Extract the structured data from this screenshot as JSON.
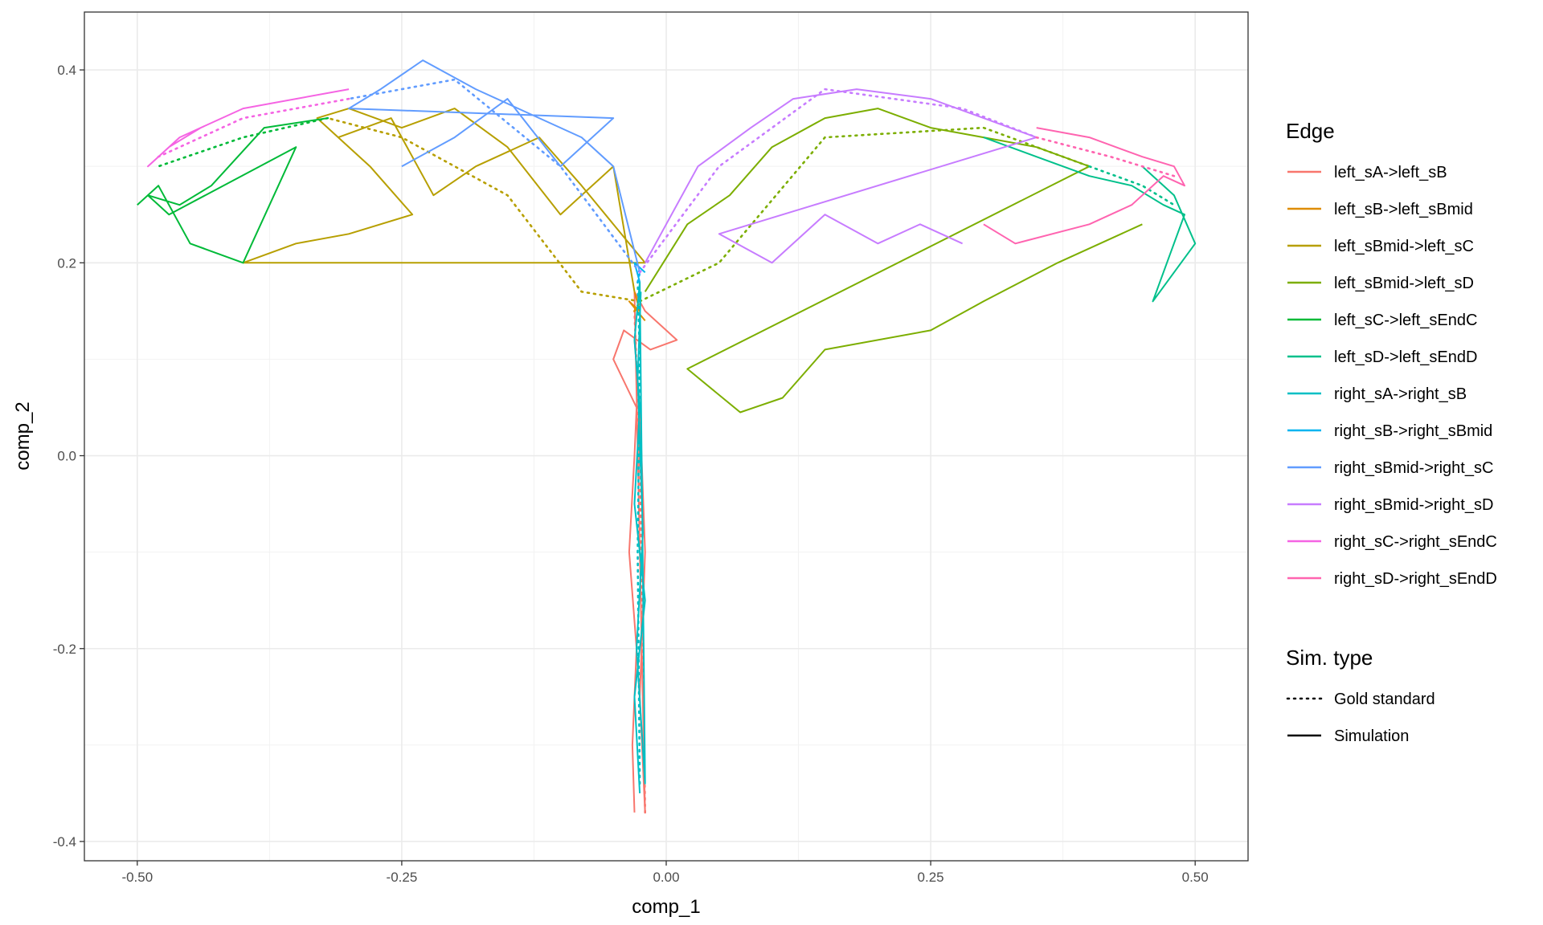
{
  "chart_data": {
    "type": "line",
    "xlabel": "comp_1",
    "ylabel": "comp_2",
    "xlim": [
      -0.55,
      0.55
    ],
    "ylim": [
      -0.42,
      0.46
    ],
    "x_ticks": [
      -0.5,
      -0.25,
      0.0,
      0.25,
      0.5
    ],
    "x_tick_labels": [
      "-0.50",
      "-0.25",
      "0.00",
      "0.25",
      "0.50"
    ],
    "y_ticks": [
      -0.4,
      -0.2,
      0.0,
      0.2,
      0.4
    ],
    "y_tick_labels": [
      "-0.4",
      "-0.2",
      "0.0",
      "0.2",
      "0.4"
    ],
    "grid": true,
    "legend_position": "right",
    "legend_edge_title": "Edge",
    "legend_simtype_title": "Sim. type",
    "simtypes": [
      {
        "name": "Gold standard",
        "dash": "dotted"
      },
      {
        "name": "Simulation",
        "dash": "solid"
      }
    ],
    "series": [
      {
        "name": "left_sA->left_sB",
        "color": "#F8766D",
        "gold": [
          [
            -0.02,
            -0.37
          ],
          [
            -0.022,
            -0.2
          ],
          [
            -0.025,
            0.0
          ],
          [
            -0.03,
            0.15
          ]
        ],
        "sim": [
          [
            -0.03,
            -0.37
          ],
          [
            -0.032,
            -0.3
          ],
          [
            -0.028,
            -0.2
          ],
          [
            -0.035,
            -0.1
          ],
          [
            -0.03,
            0.0
          ],
          [
            -0.028,
            0.05
          ],
          [
            -0.05,
            0.1
          ],
          [
            -0.04,
            0.13
          ],
          [
            -0.015,
            0.11
          ],
          [
            0.01,
            0.12
          ],
          [
            -0.02,
            0.15
          ],
          [
            -0.03,
            0.17
          ],
          [
            -0.02,
            -0.37
          ],
          [
            -0.025,
            -0.25
          ],
          [
            -0.02,
            -0.1
          ],
          [
            -0.025,
            0.05
          ],
          [
            -0.03,
            0.12
          ]
        ]
      },
      {
        "name": "left_sB->left_sBmid",
        "color": "#DE8C00",
        "gold": [
          [
            -0.03,
            0.15
          ],
          [
            -0.025,
            0.16
          ]
        ],
        "sim": [
          [
            -0.03,
            0.17
          ],
          [
            -0.025,
            0.15
          ],
          [
            -0.035,
            0.16
          ],
          [
            -0.02,
            0.14
          ]
        ]
      },
      {
        "name": "left_sBmid->left_sC",
        "color": "#B79F00",
        "gold": [
          [
            -0.025,
            0.16
          ],
          [
            -0.08,
            0.17
          ],
          [
            -0.15,
            0.27
          ],
          [
            -0.25,
            0.33
          ],
          [
            -0.32,
            0.35
          ]
        ],
        "sim": [
          [
            -0.03,
            0.17
          ],
          [
            -0.05,
            0.3
          ],
          [
            -0.1,
            0.25
          ],
          [
            -0.15,
            0.32
          ],
          [
            -0.2,
            0.36
          ],
          [
            -0.25,
            0.34
          ],
          [
            -0.3,
            0.36
          ],
          [
            -0.33,
            0.35
          ],
          [
            -0.28,
            0.3
          ],
          [
            -0.24,
            0.25
          ],
          [
            -0.3,
            0.23
          ],
          [
            -0.35,
            0.22
          ],
          [
            -0.4,
            0.2
          ],
          [
            -0.02,
            0.2
          ],
          [
            -0.08,
            0.28
          ],
          [
            -0.12,
            0.33
          ],
          [
            -0.18,
            0.3
          ],
          [
            -0.22,
            0.27
          ],
          [
            -0.26,
            0.35
          ],
          [
            -0.31,
            0.33
          ]
        ]
      },
      {
        "name": "left_sBmid->left_sD",
        "color": "#7CAE00",
        "gold": [
          [
            -0.025,
            0.16
          ],
          [
            0.05,
            0.2
          ],
          [
            0.15,
            0.33
          ],
          [
            0.3,
            0.34
          ],
          [
            0.4,
            0.3
          ]
        ],
        "sim": [
          [
            -0.02,
            0.17
          ],
          [
            0.02,
            0.24
          ],
          [
            0.06,
            0.27
          ],
          [
            0.1,
            0.32
          ],
          [
            0.15,
            0.35
          ],
          [
            0.2,
            0.36
          ],
          [
            0.25,
            0.34
          ],
          [
            0.3,
            0.33
          ],
          [
            0.35,
            0.32
          ],
          [
            0.4,
            0.3
          ],
          [
            0.02,
            0.09
          ],
          [
            0.07,
            0.045
          ],
          [
            0.11,
            0.06
          ],
          [
            0.15,
            0.11
          ],
          [
            0.25,
            0.13
          ],
          [
            0.3,
            0.16
          ],
          [
            0.37,
            0.2
          ],
          [
            0.45,
            0.24
          ]
        ]
      },
      {
        "name": "left_sC->left_sEndC",
        "color": "#00BA38",
        "gold": [
          [
            -0.32,
            0.35
          ],
          [
            -0.4,
            0.33
          ],
          [
            -0.48,
            0.3
          ]
        ],
        "sim": [
          [
            -0.32,
            0.35
          ],
          [
            -0.38,
            0.34
          ],
          [
            -0.43,
            0.28
          ],
          [
            -0.46,
            0.26
          ],
          [
            -0.49,
            0.27
          ],
          [
            -0.47,
            0.25
          ],
          [
            -0.35,
            0.32
          ],
          [
            -0.4,
            0.2
          ],
          [
            -0.45,
            0.22
          ],
          [
            -0.48,
            0.28
          ],
          [
            -0.5,
            0.26
          ]
        ]
      },
      {
        "name": "left_sD->left_sEndD",
        "color": "#00C08B",
        "gold": [
          [
            0.4,
            0.3
          ],
          [
            0.45,
            0.28
          ],
          [
            0.48,
            0.26
          ]
        ],
        "sim": [
          [
            0.3,
            0.33
          ],
          [
            0.35,
            0.31
          ],
          [
            0.4,
            0.29
          ],
          [
            0.44,
            0.28
          ],
          [
            0.47,
            0.26
          ],
          [
            0.49,
            0.25
          ],
          [
            0.46,
            0.16
          ],
          [
            0.5,
            0.22
          ],
          [
            0.48,
            0.27
          ],
          [
            0.45,
            0.3
          ]
        ]
      },
      {
        "name": "right_sA->right_sB",
        "color": "#00BFC4",
        "gold": [
          [
            -0.025,
            -0.34
          ],
          [
            -0.027,
            -0.1
          ],
          [
            -0.025,
            0.1
          ],
          [
            -0.027,
            0.18
          ]
        ],
        "sim": [
          [
            -0.025,
            -0.35
          ],
          [
            -0.03,
            -0.25
          ],
          [
            -0.02,
            -0.15
          ],
          [
            -0.03,
            -0.05
          ],
          [
            -0.025,
            0.05
          ],
          [
            -0.03,
            0.12
          ],
          [
            -0.025,
            0.18
          ],
          [
            -0.02,
            -0.34
          ],
          [
            -0.028,
            -0.2
          ],
          [
            -0.022,
            -0.08
          ],
          [
            -0.027,
            0.08
          ],
          [
            -0.024,
            0.17
          ]
        ]
      },
      {
        "name": "right_sB->right_sBmid",
        "color": "#00B4F0",
        "gold": [
          [
            -0.027,
            0.18
          ],
          [
            -0.025,
            0.19
          ]
        ],
        "sim": [
          [
            -0.025,
            0.18
          ],
          [
            -0.03,
            0.2
          ],
          [
            -0.02,
            0.19
          ]
        ]
      },
      {
        "name": "right_sBmid->right_sC",
        "color": "#619CFF",
        "gold": [
          [
            -0.025,
            0.19
          ],
          [
            -0.1,
            0.3
          ],
          [
            -0.2,
            0.39
          ],
          [
            -0.3,
            0.37
          ]
        ],
        "sim": [
          [
            -0.025,
            0.19
          ],
          [
            -0.05,
            0.3
          ],
          [
            -0.08,
            0.33
          ],
          [
            -0.12,
            0.35
          ],
          [
            -0.18,
            0.38
          ],
          [
            -0.23,
            0.41
          ],
          [
            -0.27,
            0.38
          ],
          [
            -0.3,
            0.36
          ],
          [
            -0.05,
            0.35
          ],
          [
            -0.1,
            0.3
          ],
          [
            -0.15,
            0.37
          ],
          [
            -0.2,
            0.33
          ],
          [
            -0.25,
            0.3
          ]
        ]
      },
      {
        "name": "right_sBmid->right_sD",
        "color": "#C77CFF",
        "gold": [
          [
            -0.025,
            0.19
          ],
          [
            0.05,
            0.3
          ],
          [
            0.15,
            0.38
          ],
          [
            0.28,
            0.36
          ],
          [
            0.35,
            0.33
          ]
        ],
        "sim": [
          [
            -0.02,
            0.2
          ],
          [
            0.03,
            0.3
          ],
          [
            0.08,
            0.34
          ],
          [
            0.12,
            0.37
          ],
          [
            0.18,
            0.38
          ],
          [
            0.25,
            0.37
          ],
          [
            0.3,
            0.35
          ],
          [
            0.35,
            0.33
          ],
          [
            0.05,
            0.23
          ],
          [
            0.1,
            0.2
          ],
          [
            0.15,
            0.25
          ],
          [
            0.2,
            0.22
          ],
          [
            0.24,
            0.24
          ],
          [
            0.28,
            0.22
          ]
        ]
      },
      {
        "name": "right_sC->right_sEndC",
        "color": "#F564E3",
        "gold": [
          [
            -0.3,
            0.37
          ],
          [
            -0.4,
            0.35
          ],
          [
            -0.48,
            0.31
          ]
        ],
        "sim": [
          [
            -0.3,
            0.38
          ],
          [
            -0.35,
            0.37
          ],
          [
            -0.4,
            0.36
          ],
          [
            -0.44,
            0.34
          ],
          [
            -0.47,
            0.32
          ],
          [
            -0.49,
            0.3
          ],
          [
            -0.46,
            0.33
          ],
          [
            -0.42,
            0.35
          ]
        ]
      },
      {
        "name": "right_sD->right_sEndD",
        "color": "#FF64B0",
        "gold": [
          [
            0.35,
            0.33
          ],
          [
            0.42,
            0.31
          ],
          [
            0.48,
            0.29
          ]
        ],
        "sim": [
          [
            0.35,
            0.34
          ],
          [
            0.4,
            0.33
          ],
          [
            0.45,
            0.31
          ],
          [
            0.48,
            0.3
          ],
          [
            0.49,
            0.28
          ],
          [
            0.47,
            0.29
          ],
          [
            0.44,
            0.26
          ],
          [
            0.4,
            0.24
          ],
          [
            0.33,
            0.22
          ],
          [
            0.3,
            0.24
          ]
        ]
      }
    ]
  }
}
